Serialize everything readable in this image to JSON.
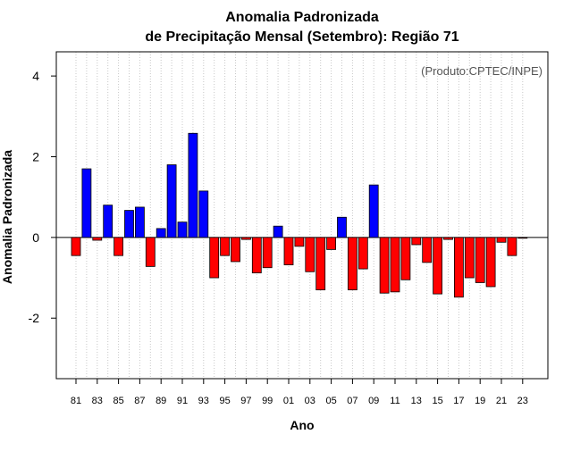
{
  "chart_data": {
    "type": "bar",
    "title_line1": "Anomalia Padronizada",
    "title_line2": "de Precipitação Mensal (Setembro): Região 71",
    "credit": "(Produto:CPTEC/INPE)",
    "xlabel": "Ano",
    "ylabel": "Anomalia Padronizada",
    "ylim": [
      -3.5,
      4.6
    ],
    "yticks": [
      -2,
      0,
      2,
      4
    ],
    "ytick_labels": [
      "-2",
      "0",
      "2",
      "4"
    ],
    "grid": "vertical dotted",
    "categories": [
      "81",
      "82",
      "83",
      "84",
      "85",
      "86",
      "87",
      "88",
      "89",
      "90",
      "91",
      "92",
      "93",
      "94",
      "95",
      "96",
      "97",
      "98",
      "99",
      "00",
      "01",
      "02",
      "03",
      "04",
      "05",
      "06",
      "07",
      "08",
      "09",
      "10",
      "11",
      "12",
      "13",
      "14",
      "15",
      "16",
      "17",
      "18",
      "19",
      "20",
      "21",
      "22",
      "23"
    ],
    "xtick_labels": [
      "81",
      "83",
      "85",
      "87",
      "89",
      "91",
      "93",
      "95",
      "97",
      "99",
      "01",
      "03",
      "05",
      "07",
      "09",
      "11",
      "13",
      "15",
      "17",
      "19",
      "21",
      "23"
    ],
    "values": [
      -0.45,
      1.7,
      -0.07,
      0.8,
      -0.45,
      0.67,
      0.75,
      -0.72,
      0.22,
      1.8,
      0.38,
      2.58,
      1.15,
      -1.0,
      -0.45,
      -0.6,
      -0.05,
      -0.88,
      -0.75,
      0.28,
      -0.68,
      -0.22,
      -0.85,
      -1.3,
      -0.3,
      0.5,
      -1.3,
      -0.78,
      1.3,
      -1.38,
      -1.35,
      -1.05,
      -0.18,
      -0.62,
      -1.4,
      -0.05,
      -1.48,
      -1.0,
      -1.12,
      -1.22,
      -0.12,
      -0.45,
      -0.02
    ],
    "positive_color": "#0000ff",
    "negative_color": "#ff0000"
  }
}
